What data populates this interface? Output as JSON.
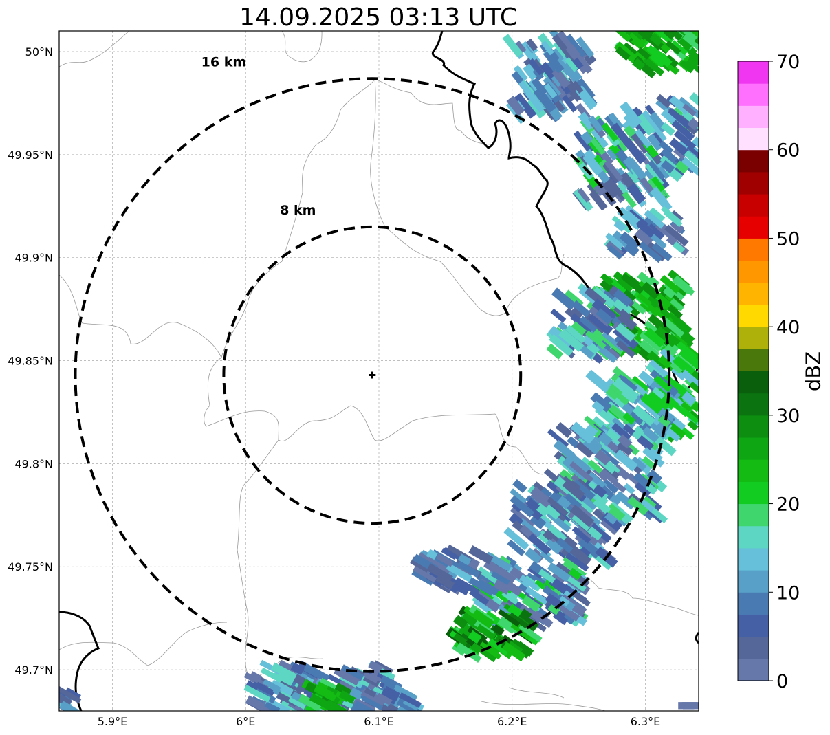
{
  "title": "14.09.2025 03:13 UTC",
  "map": {
    "lon_range": [
      5.86,
      6.34
    ],
    "lat_range": [
      49.68,
      50.01
    ],
    "x_ticks": [
      {
        "value": 5.9,
        "label": "5.9°E"
      },
      {
        "value": 6.0,
        "label": "6°E"
      },
      {
        "value": 6.1,
        "label": "6.1°E"
      },
      {
        "value": 6.2,
        "label": "6.2°E"
      },
      {
        "value": 6.3,
        "label": "6.3°E"
      }
    ],
    "y_ticks": [
      {
        "value": 50.0,
        "label": "50°N"
      },
      {
        "value": 49.95,
        "label": "49.95°N"
      },
      {
        "value": 49.9,
        "label": "49.9°N"
      },
      {
        "value": 49.85,
        "label": "49.85°N"
      },
      {
        "value": 49.8,
        "label": "49.8°N"
      },
      {
        "value": 49.75,
        "label": "49.75°N"
      },
      {
        "value": 49.7,
        "label": "49.7°N"
      }
    ],
    "radar_site": {
      "lon": 6.095,
      "lat": 49.843
    },
    "range_rings": [
      {
        "radius_km": 8,
        "label": "8 km"
      },
      {
        "radius_km": 16,
        "label": "16 km"
      }
    ],
    "grid": true
  },
  "colorbar": {
    "label": "dBZ",
    "min": 0,
    "max": 70,
    "ticks": [
      {
        "value": 0,
        "label": "0"
      },
      {
        "value": 10,
        "label": "10"
      },
      {
        "value": 20,
        "label": "20"
      },
      {
        "value": 30,
        "label": "30"
      },
      {
        "value": 40,
        "label": "40"
      },
      {
        "value": 50,
        "label": "50"
      },
      {
        "value": 60,
        "label": "60"
      },
      {
        "value": 70,
        "label": "70"
      }
    ],
    "colors": [
      "#6677aa",
      "#556699",
      "#4560a5",
      "#4a7ab2",
      "#58a0c8",
      "#66c0da",
      "#5dd6c4",
      "#3ed66d",
      "#12cc22",
      "#13bb13",
      "#0fa614",
      "#0d8e10",
      "#0b7410",
      "#095f0c",
      "#4a780b",
      "#adb10a",
      "#ffd900",
      "#ffb400",
      "#ff9800",
      "#ff7800",
      "#e60000",
      "#c80000",
      "#a00000",
      "#7a0000",
      "#ffe0ff",
      "#ffb0ff",
      "#ff70ff",
      "#f036f0"
    ]
  }
}
